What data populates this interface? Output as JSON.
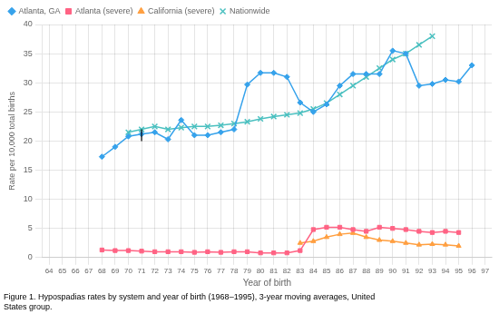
{
  "chart_data": {
    "type": "line",
    "xlabel": "Year of birth",
    "ylabel": "Rate per 10,000 total births",
    "xlim": [
      63.5,
      97.5
    ],
    "ylim": [
      0,
      40
    ],
    "xticks": [
      64,
      65,
      66,
      67,
      68,
      69,
      70,
      71,
      72,
      73,
      74,
      75,
      76,
      77,
      78,
      79,
      80,
      81,
      82,
      83,
      84,
      85,
      86,
      87,
      88,
      89,
      90,
      91,
      92,
      93,
      94,
      95,
      96,
      97
    ],
    "yticks": [
      0,
      5,
      10,
      15,
      20,
      25,
      30,
      35,
      40
    ],
    "grid": true,
    "legend": "upper left",
    "annotations": [
      {
        "text": "Figure 1. Hypospadias rates by system and year of birth (1968–1995), 3-year moving averages, United\nStates group."
      }
    ],
    "error_bars": [
      {
        "x": 71,
        "low": 20.0,
        "high": 22.0
      }
    ],
    "series": [
      {
        "name": "Atlanta, GA",
        "marker": "diamond",
        "x": [
          68,
          69,
          70,
          71,
          72,
          73,
          74,
          75,
          76,
          77,
          78,
          79,
          80,
          81,
          82,
          83,
          84,
          85,
          86,
          87,
          88,
          89,
          90,
          91,
          92,
          93,
          94,
          95,
          96
        ],
        "values": [
          17.3,
          19.0,
          20.8,
          21.2,
          21.5,
          20.3,
          23.6,
          21.0,
          21.0,
          21.5,
          22.0,
          29.7,
          31.7,
          31.7,
          31.0,
          26.6,
          25.0,
          26.3,
          29.5,
          31.5,
          31.5,
          31.5,
          35.5,
          35.0,
          29.5,
          29.8,
          30.5,
          30.2,
          33.0
        ]
      },
      {
        "name": "Atlanta (severe)",
        "marker": "square",
        "x": [
          68,
          69,
          70,
          71,
          72,
          73,
          74,
          75,
          76,
          77,
          78,
          79,
          80,
          81,
          82,
          83,
          84,
          85,
          86,
          87,
          88,
          89,
          90,
          91,
          92,
          93,
          94,
          95
        ],
        "values": [
          1.3,
          1.2,
          1.2,
          1.1,
          1.0,
          1.0,
          1.0,
          0.9,
          1.0,
          0.9,
          1.0,
          1.0,
          0.8,
          0.8,
          0.8,
          1.2,
          4.8,
          5.2,
          5.2,
          4.8,
          4.5,
          5.2,
          5.0,
          4.8,
          4.5,
          4.3,
          4.5,
          4.3
        ]
      },
      {
        "name": "California (severe)",
        "marker": "triangle",
        "x": [
          83,
          84,
          85,
          86,
          87,
          88,
          89,
          90,
          91,
          92,
          93,
          94,
          95
        ],
        "values": [
          2.5,
          2.8,
          3.5,
          4.0,
          4.2,
          3.5,
          3.0,
          2.8,
          2.5,
          2.2,
          2.3,
          2.2,
          2.0
        ]
      },
      {
        "name": "Nationwide",
        "marker": "x",
        "x": [
          70,
          71,
          72,
          73,
          74,
          75,
          76,
          77,
          78,
          79,
          80,
          81,
          82,
          83,
          84,
          85,
          86,
          87,
          88,
          89,
          90,
          91,
          92,
          93
        ],
        "values": [
          21.5,
          22.0,
          22.5,
          22.0,
          22.3,
          22.5,
          22.5,
          22.7,
          23.0,
          23.3,
          23.8,
          24.2,
          24.5,
          24.8,
          25.5,
          26.5,
          28.0,
          29.5,
          31.0,
          32.5,
          34.0,
          35.0,
          36.5,
          38.0
        ]
      }
    ]
  }
}
